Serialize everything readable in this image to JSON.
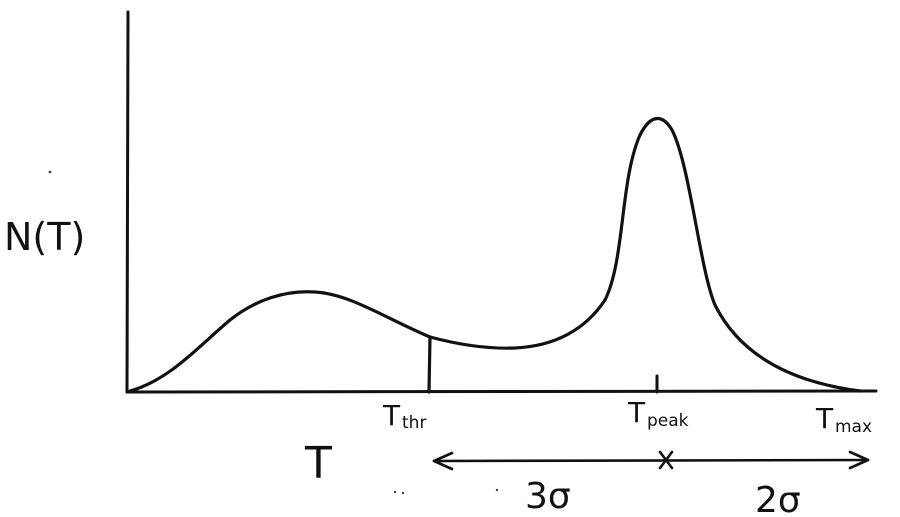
{
  "ylabel": "N(T)",
  "xlabel": "T",
  "markers": {
    "threshold": "T",
    "threshold_sub": "thr",
    "peak": "T",
    "peak_sub": "peak",
    "max": "T",
    "max_sub": "max"
  },
  "spans": {
    "left": "3σ",
    "right": "2σ"
  },
  "colors": {
    "ink": "#111111",
    "background": "#ffffff"
  }
}
